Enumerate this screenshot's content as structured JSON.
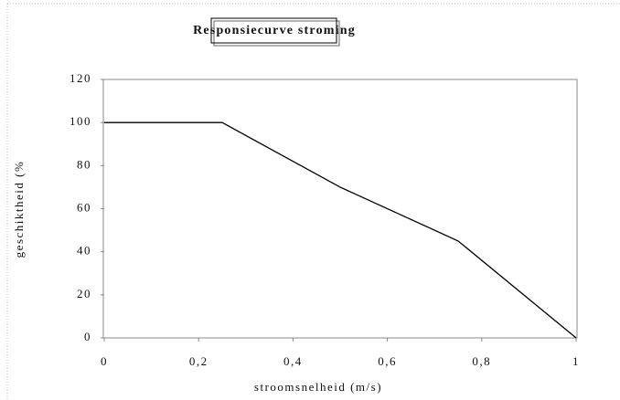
{
  "chart_data": {
    "type": "line",
    "title": "Responsiecurve stroming",
    "xlabel": "stroomsnelheid (m/s)",
    "ylabel": "geschiktheid (%",
    "x": [
      0,
      0.25,
      0.5,
      0.75,
      1
    ],
    "values": [
      100,
      100,
      70,
      45,
      0
    ],
    "color": "#000000",
    "xlim": [
      0,
      1
    ],
    "xticks": [
      0,
      {
        "value": 0.2,
        "label": "0,2"
      },
      {
        "value": 0.4,
        "label": "0,4"
      },
      {
        "value": 0.6,
        "label": "0,6"
      },
      {
        "value": 0.8,
        "label": "0,8"
      },
      1
    ],
    "ylim": [
      0,
      120
    ],
    "yticks": [
      0,
      20,
      40,
      60,
      80,
      100,
      120
    ],
    "grid": false
  }
}
